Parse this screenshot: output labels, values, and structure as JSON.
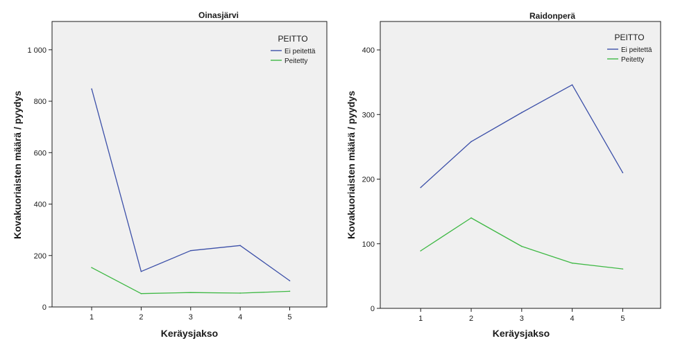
{
  "chart_data": [
    {
      "type": "line",
      "title": "Oinasjärvi",
      "xlabel": "Keräysjakso",
      "ylabel": "Kovakuoriaisten määrä / pyydys",
      "x": [
        1,
        2,
        3,
        4,
        5
      ],
      "xlim": [
        0.2,
        5.75
      ],
      "ylim": [
        0,
        1110
      ],
      "yticks": [
        0,
        200,
        400,
        600,
        800,
        1000
      ],
      "ytick_labels": [
        "0",
        "200",
        "400",
        "600",
        "800",
        "1 000"
      ],
      "xtick_labels": [
        "1",
        "2",
        "3",
        "4",
        "5"
      ],
      "legend_title": "PEITTO",
      "legend_position": "top-right",
      "series": [
        {
          "name": "Ei peitettä",
          "color": "#3b4fa8",
          "values": [
            848,
            138,
            219,
            239,
            102
          ]
        },
        {
          "name": "Peitetty",
          "color": "#3db843",
          "values": [
            153,
            52,
            56,
            54,
            61
          ]
        }
      ]
    },
    {
      "type": "line",
      "title": "Raidonperä",
      "xlabel": "Keräysjakso",
      "ylabel": "Kovakuoriaisten määrä / pyydys",
      "x": [
        1,
        2,
        3,
        4,
        5
      ],
      "xlim": [
        0.2,
        5.75
      ],
      "ylim": [
        0,
        444
      ],
      "yticks": [
        0,
        100,
        200,
        300,
        400
      ],
      "ytick_labels": [
        "0",
        "100",
        "200",
        "300",
        "400"
      ],
      "xtick_labels": [
        "1",
        "2",
        "3",
        "4",
        "5"
      ],
      "legend_title": "PEITTO",
      "legend_position": "top-right",
      "series": [
        {
          "name": "Ei peitettä",
          "color": "#3b4fa8",
          "values": [
            187,
            258,
            303,
            346,
            210
          ]
        },
        {
          "name": "Peitetty",
          "color": "#3db843",
          "values": [
            89,
            140,
            96,
            70,
            61
          ]
        }
      ]
    }
  ]
}
